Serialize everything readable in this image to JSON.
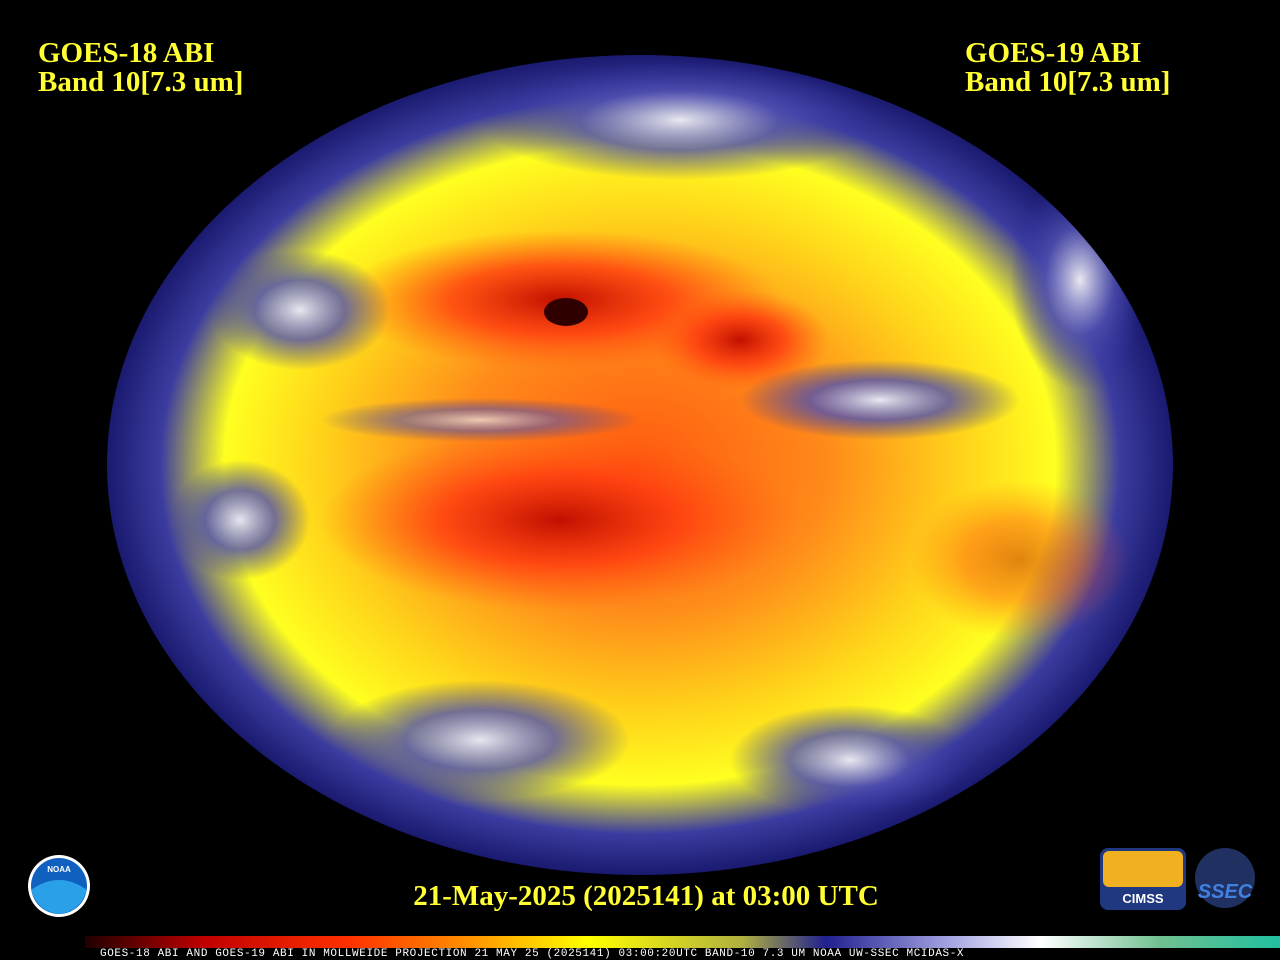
{
  "left_label": {
    "satellite": "GOES-18 ABI",
    "band": "Band 10[7.3 um]"
  },
  "right_label": {
    "satellite": "GOES-19 ABI",
    "band": "Band 10[7.3 um]"
  },
  "timestamp": "21-May-2025 (2025141) at 03:00 UTC",
  "footer": "GOES-18 ABI AND GOES-19 ABI IN MOLLWEIDE PROJECTION 21 MAY 25 (2025141) 03:00:20UTC BAND-10 7.3 UM NOAA UW-SSEC MCIDAS-X",
  "logos": {
    "noaa": "NOAA",
    "cimss": "CIMSS",
    "ssec": "SSEC"
  }
}
